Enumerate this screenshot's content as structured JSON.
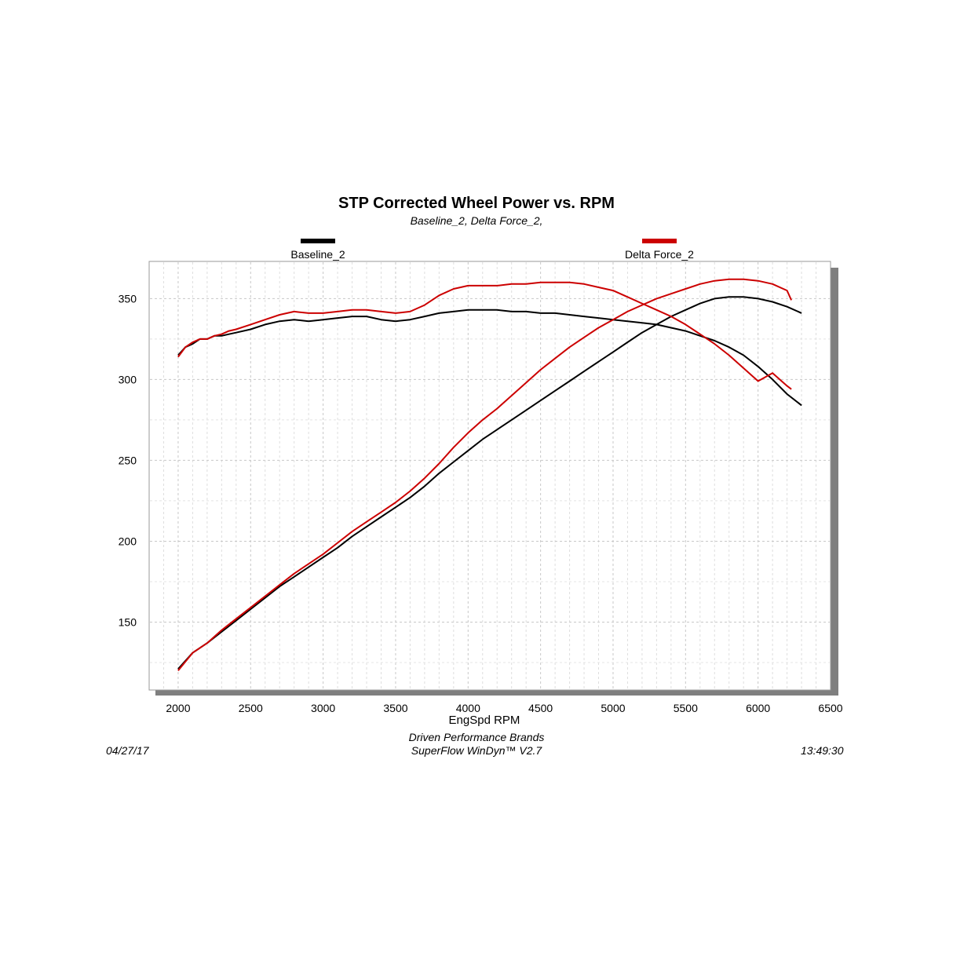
{
  "header": {
    "title": "STP Corrected Wheel Power vs. RPM",
    "subtitle": "Baseline_2, Delta Force_2,"
  },
  "footer": {
    "date": "04/27/17",
    "time": "13:49:30",
    "credit_line1": "Driven Performance Brands",
    "credit_line2": "SuperFlow WinDyn™ V2.7"
  },
  "chart_data": {
    "type": "line",
    "title": "STP Corrected Wheel Power vs. RPM",
    "subtitle": "Baseline_2, Delta Force_2,",
    "xlabel": "EngSpd  RPM",
    "ylabel": "",
    "xlim": [
      1800,
      6500
    ],
    "ylim": [
      108,
      373
    ],
    "xticks": [
      2000,
      2500,
      3000,
      3500,
      4000,
      4500,
      5000,
      5500,
      6000,
      6500
    ],
    "yticks": [
      150,
      200,
      250,
      300,
      350
    ],
    "grid": true,
    "legend_position": "top",
    "series": [
      {
        "name": "Baseline_2",
        "color": "#000000",
        "curves": [
          {
            "x": [
              2000,
              2050,
              2100,
              2150,
              2200,
              2250,
              2300,
              2350,
              2400,
              2500,
              2600,
              2700,
              2800,
              2900,
              3000,
              3100,
              3200,
              3300,
              3400,
              3500,
              3600,
              3700,
              3800,
              3900,
              4000,
              4100,
              4200,
              4300,
              4400,
              4500,
              4600,
              4700,
              4800,
              4900,
              5000,
              5100,
              5200,
              5300,
              5400,
              5500,
              5600,
              5700,
              5800,
              5900,
              6000,
              6100,
              6200,
              6300
            ],
            "y": [
              315,
              320,
              322,
              325,
              325,
              327,
              327,
              328,
              329,
              331,
              334,
              336,
              337,
              336,
              337,
              338,
              339,
              339,
              337,
              336,
              337,
              339,
              341,
              342,
              343,
              343,
              343,
              342,
              342,
              341,
              341,
              340,
              339,
              338,
              337,
              336,
              335,
              334,
              332,
              330,
              327,
              324,
              320,
              315,
              308,
              300,
              291,
              284
            ]
          },
          {
            "x": [
              2000,
              2100,
              2200,
              2300,
              2400,
              2500,
              2600,
              2700,
              2800,
              2900,
              3000,
              3100,
              3200,
              3300,
              3400,
              3500,
              3600,
              3700,
              3800,
              3900,
              4000,
              4100,
              4200,
              4300,
              4400,
              4500,
              4600,
              4700,
              4800,
              4900,
              5000,
              5100,
              5200,
              5300,
              5400,
              5500,
              5600,
              5700,
              5800,
              5900,
              6000,
              6100,
              6200,
              6300
            ],
            "y": [
              121,
              131,
              137,
              144,
              151,
              158,
              165,
              172,
              178,
              184,
              190,
              196,
              203,
              209,
              215,
              221,
              227,
              234,
              242,
              249,
              256,
              263,
              269,
              275,
              281,
              287,
              293,
              299,
              305,
              311,
              317,
              323,
              329,
              334,
              339,
              343,
              347,
              350,
              351,
              351,
              350,
              348,
              345,
              341
            ]
          }
        ]
      },
      {
        "name": "Delta Force_2",
        "color": "#cc0000",
        "curves": [
          {
            "x": [
              2000,
              2050,
              2100,
              2150,
              2200,
              2250,
              2300,
              2350,
              2400,
              2500,
              2600,
              2700,
              2800,
              2900,
              3000,
              3100,
              3200,
              3300,
              3400,
              3500,
              3600,
              3700,
              3800,
              3900,
              4000,
              4100,
              4200,
              4300,
              4400,
              4500,
              4600,
              4700,
              4800,
              4900,
              5000,
              5100,
              5200,
              5300,
              5400,
              5500,
              5600,
              5700,
              5800,
              5900,
              6000,
              6100,
              6200,
              6230
            ],
            "y": [
              314,
              320,
              323,
              325,
              325,
              327,
              328,
              330,
              331,
              334,
              337,
              340,
              342,
              341,
              341,
              342,
              343,
              343,
              342,
              341,
              342,
              346,
              352,
              356,
              358,
              358,
              358,
              359,
              359,
              360,
              360,
              360,
              359,
              357,
              355,
              351,
              347,
              343,
              339,
              334,
              328,
              322,
              315,
              307,
              299,
              304,
              296,
              294
            ]
          },
          {
            "x": [
              2000,
              2100,
              2200,
              2300,
              2400,
              2500,
              2600,
              2700,
              2800,
              2900,
              3000,
              3100,
              3200,
              3300,
              3400,
              3500,
              3600,
              3700,
              3800,
              3900,
              4000,
              4100,
              4200,
              4300,
              4400,
              4500,
              4600,
              4700,
              4800,
              4900,
              5000,
              5100,
              5200,
              5300,
              5400,
              5500,
              5600,
              5700,
              5800,
              5900,
              6000,
              6100,
              6200,
              6230
            ],
            "y": [
              120,
              131,
              137,
              145,
              152,
              159,
              166,
              173,
              180,
              186,
              192,
              199,
              206,
              212,
              218,
              224,
              231,
              239,
              248,
              258,
              267,
              275,
              282,
              290,
              298,
              306,
              313,
              320,
              326,
              332,
              337,
              342,
              346,
              350,
              353,
              356,
              359,
              361,
              362,
              362,
              361,
              359,
              355,
              349
            ]
          }
        ]
      }
    ]
  }
}
